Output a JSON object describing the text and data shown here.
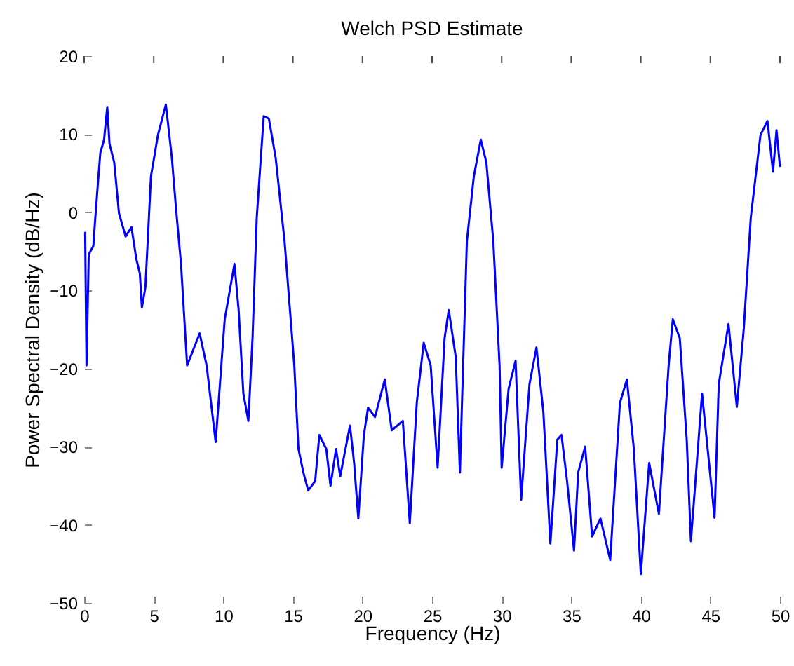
{
  "chart_data": {
    "type": "line",
    "title": "Welch PSD Estimate",
    "xlabel": "Frequency (Hz)",
    "ylabel": "Power Spectral Density (dB/Hz)",
    "xlim": [
      0,
      50
    ],
    "ylim": [
      -50,
      20
    ],
    "xticks": [
      0,
      5,
      10,
      15,
      20,
      25,
      30,
      35,
      40,
      45,
      50
    ],
    "yticks": [
      -50,
      -40,
      -30,
      -20,
      -10,
      0,
      10,
      20
    ],
    "marker": "none",
    "line_style": "solid",
    "series": [
      {
        "color": "#0000ff",
        "x": [
          0.07,
          0.17,
          0.33,
          0.66,
          0.8,
          1.0,
          1.16,
          1.43,
          1.66,
          1.82,
          2.16,
          2.5,
          2.98,
          3.4,
          3.75,
          4.0,
          4.15,
          4.4,
          4.8,
          5.3,
          5.87,
          6.3,
          6.6,
          6.96,
          7.4,
          8.3,
          8.8,
          9.45,
          10.1,
          10.8,
          11.1,
          11.44,
          11.8,
          12.1,
          12.4,
          12.9,
          13.27,
          13.76,
          14.4,
          15.1,
          15.4,
          15.75,
          16.1,
          16.6,
          16.9,
          17.4,
          17.7,
          18.1,
          18.4,
          19.1,
          19.4,
          19.7,
          20.1,
          20.4,
          20.9,
          21.6,
          22.1,
          22.9,
          23.4,
          23.9,
          24.4,
          24.9,
          25.4,
          25.9,
          26.2,
          26.7,
          27.0,
          27.5,
          28.0,
          28.5,
          28.9,
          29.4,
          29.85,
          30.0,
          30.5,
          31.0,
          31.4,
          32.0,
          32.5,
          33.0,
          33.5,
          34.0,
          34.3,
          34.7,
          35.2,
          35.5,
          36.0,
          36.5,
          37.1,
          37.8,
          38.5,
          39.0,
          39.5,
          40.0,
          40.6,
          41.3,
          42.0,
          42.3,
          42.8,
          43.3,
          43.6,
          44.4,
          45.3,
          45.6,
          46.3,
          46.9,
          47.4,
          47.9,
          48.6,
          49.1,
          49.5,
          49.75,
          50.0
        ],
        "values": [
          -2.5,
          -19.6,
          -5.4,
          -4.3,
          -0.7,
          4,
          7.6,
          9.3,
          13.5,
          8.8,
          6.4,
          -0.1,
          -3.1,
          -1.9,
          -6,
          -7.8,
          -12.2,
          -9.6,
          4.6,
          9.9,
          13.8,
          7,
          0.5,
          -6.6,
          -19.6,
          -15.5,
          -19.6,
          -29.4,
          -13.7,
          -6.6,
          -12.5,
          -23.2,
          -26.7,
          -16.1,
          -0.7,
          12.3,
          12,
          7,
          -3.7,
          -19.6,
          -30.3,
          -33.3,
          -35.6,
          -34.4,
          -28.5,
          -30.3,
          -35,
          -30.3,
          -33.8,
          -27.3,
          -32.1,
          -39.2,
          -28.5,
          -25,
          -26.2,
          -21.4,
          -27.9,
          -26.7,
          -39.8,
          -24.4,
          -16.7,
          -19.6,
          -32.7,
          -16.1,
          -12.5,
          -18.5,
          -33.3,
          -3.7,
          4.6,
          9.3,
          6.4,
          -3.7,
          -19.6,
          -32.7,
          -22.6,
          -19,
          -36.8,
          -22,
          -17.3,
          -25.6,
          -42.4,
          -29.1,
          -28.5,
          -34.4,
          -43.3,
          -33.3,
          -30,
          -41.5,
          -39.2,
          -44.5,
          -24.4,
          -21.4,
          -30.3,
          -46.3,
          -32.1,
          -38.6,
          -19.6,
          -13.7,
          -16.1,
          -29.1,
          -42.1,
          -23.2,
          -39.1,
          -22,
          -14.3,
          -24.9,
          -14.9,
          -0.7,
          9.9,
          11.7,
          5.2,
          10.5,
          5.8
        ]
      }
    ]
  }
}
